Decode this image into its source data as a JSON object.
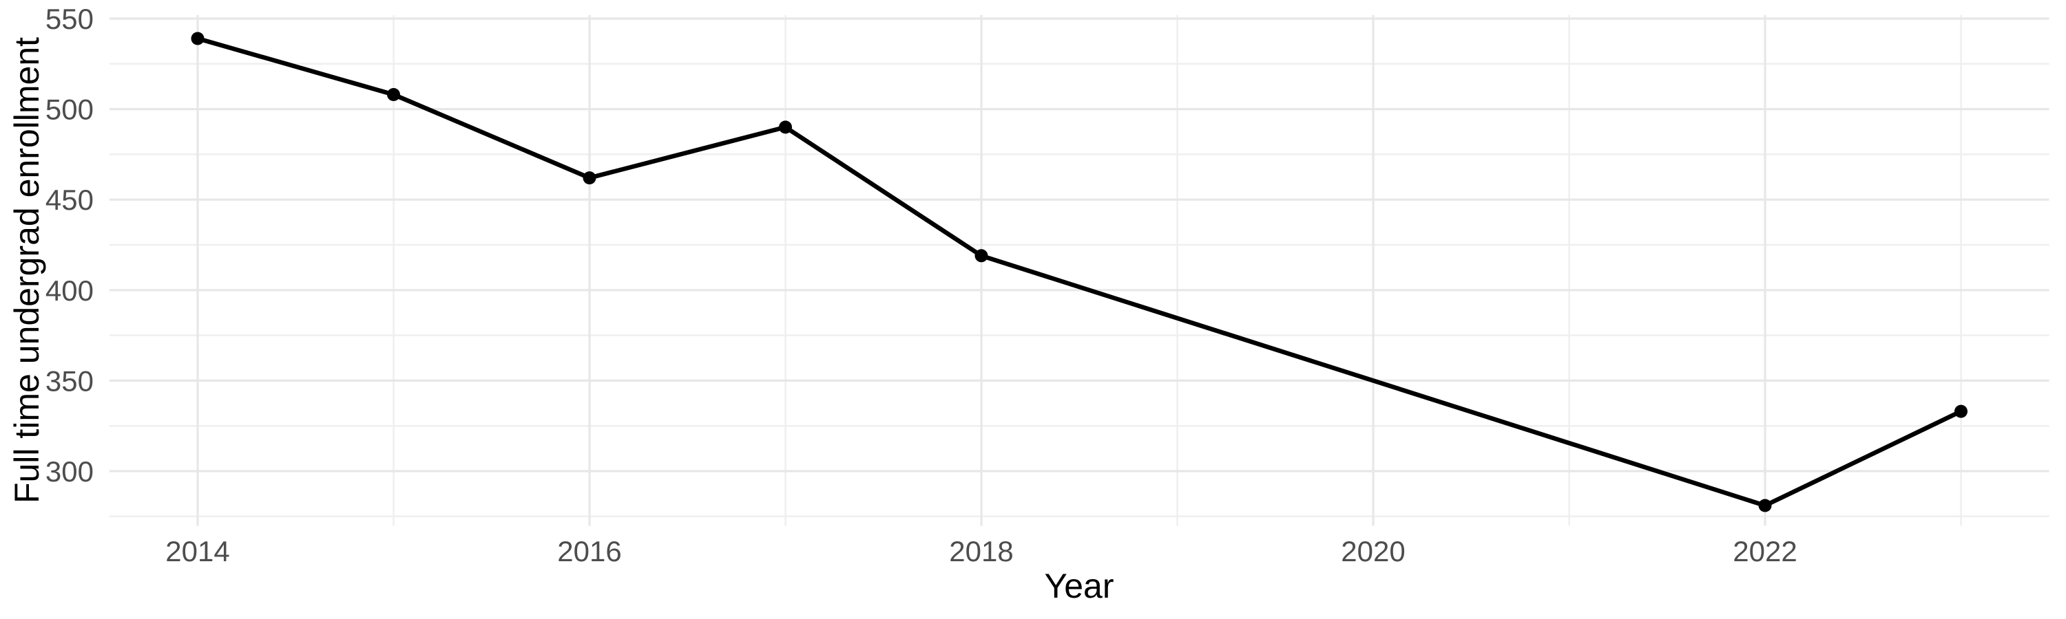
{
  "chart_data": {
    "type": "line",
    "title": "",
    "xlabel": "Year",
    "ylabel": "Full time undergrad enrollment",
    "series": [
      {
        "name": "Full time undergrad enrollment",
        "x": [
          2014,
          2015,
          2016,
          2017,
          2018,
          2022,
          2023
        ],
        "values": [
          539,
          508,
          462,
          490,
          419,
          281,
          333
        ]
      }
    ],
    "missing_years": [
      2019,
      2020,
      2021
    ],
    "x_major_ticks": [
      2014,
      2016,
      2018,
      2020,
      2022
    ],
    "x_minor_gridlines": [
      2015,
      2017,
      2019,
      2021,
      2023
    ],
    "y_major_ticks": [
      300,
      350,
      400,
      450,
      500,
      550
    ],
    "y_minor_gridlines": [
      275,
      325,
      375,
      425,
      475,
      525
    ],
    "xlim": [
      2013.55,
      2023.45
    ],
    "ylim": [
      269.8,
      552.0
    ],
    "grid": "major+minor on white background",
    "legend": "none",
    "colors": {
      "line": "#000000",
      "point": "#000000",
      "tick_label": "#4D4D4D",
      "axis_title": "#000000",
      "grid_major": "#E7E7E7",
      "grid_minor": "#EFEFEF",
      "background": "#FFFFFF"
    }
  }
}
